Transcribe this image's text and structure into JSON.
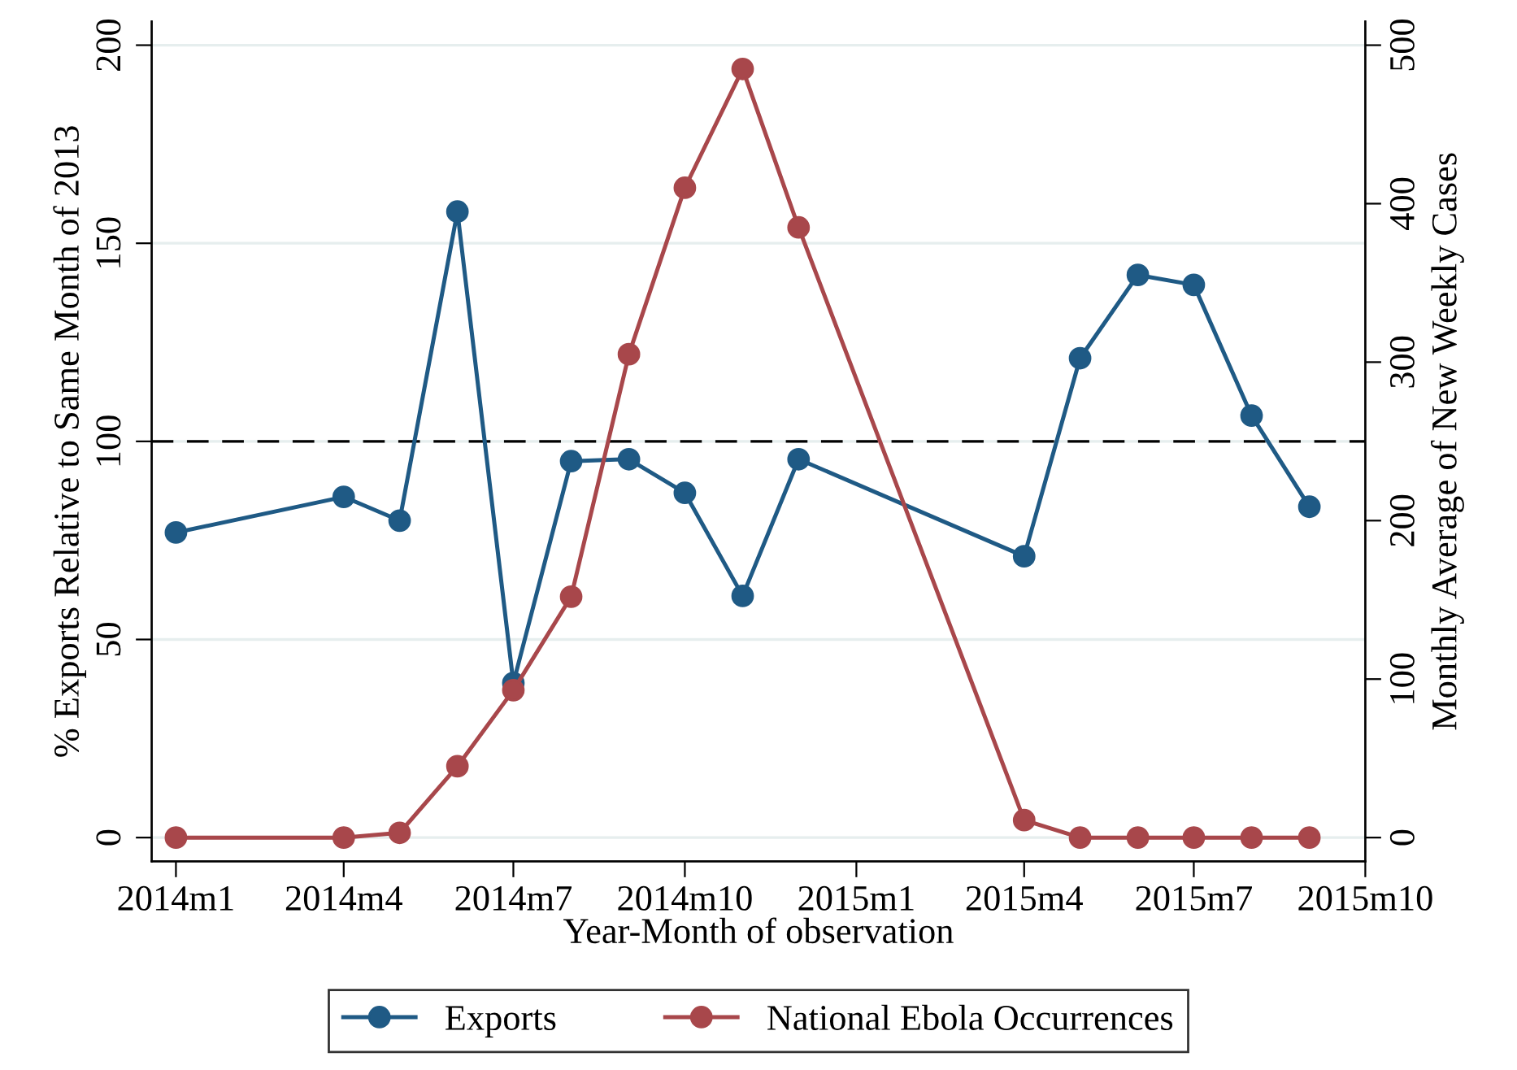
{
  "chart_data": {
    "type": "line",
    "xlabel": "Year-Month of observation",
    "ylabel": "% Exports Relative to Same Month of 2013",
    "y2label": "Monthly Average of New Weekly Cases",
    "x": [
      "2014-01",
      "2014-04",
      "2014-05",
      "2014-06",
      "2014-07",
      "2014-08",
      "2014-09",
      "2014-10",
      "2014-11",
      "2014-12",
      "2015-04",
      "2015-05",
      "2015-06",
      "2015-07",
      "2015-08",
      "2015-09"
    ],
    "series": [
      {
        "name": "Exports",
        "color": "#1f5a85",
        "values": [
          77,
          86,
          80,
          158,
          39,
          95,
          95.5,
          87,
          61,
          95.5,
          71,
          121,
          142,
          139.5,
          106.5,
          83.5
        ]
      },
      {
        "name": "National Ebola Occurrences",
        "color": "#a8474b",
        "axis": "y2",
        "values": [
          0,
          0,
          3,
          45,
          93,
          152,
          305,
          410,
          485,
          385,
          11,
          0,
          0,
          0,
          0,
          0
        ]
      }
    ],
    "xlim": [
      "2013-12-19",
      "2015-10"
    ],
    "xticks": [
      {
        "value": "2014-01",
        "label": "2014m1"
      },
      {
        "value": "2014-04",
        "label": "2014m4"
      },
      {
        "value": "2014-07",
        "label": "2014m7"
      },
      {
        "value": "2014-10",
        "label": "2014m10"
      },
      {
        "value": "2015-01",
        "label": "2015m1"
      },
      {
        "value": "2015-04",
        "label": "2015m4"
      },
      {
        "value": "2015-07",
        "label": "2015m7"
      },
      {
        "value": "2015-10",
        "label": "2015m10"
      }
    ],
    "ylim": [
      -6,
      206
    ],
    "yticks": [
      0,
      50,
      100,
      150,
      200
    ],
    "y2lim": [
      -15,
      515
    ],
    "y2ticks": [
      0,
      100,
      200,
      300,
      400,
      500
    ],
    "ref_lines": [
      {
        "axis": "y",
        "value": 100,
        "color": "#000000",
        "line_style": "dashed"
      }
    ],
    "grid": "y",
    "legend": "bottom",
    "marker": "circle",
    "line_style": "solid"
  }
}
